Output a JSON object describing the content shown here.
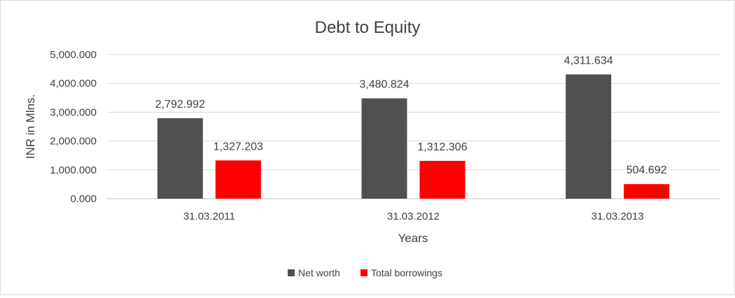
{
  "chart_data": {
    "type": "bar",
    "title": "Debt to Equity",
    "xlabel": "Years",
    "ylabel": "INR in Mlns.",
    "categories": [
      "31.03.2011",
      "31.03.2012",
      "31.03.2013"
    ],
    "ylim": [
      0,
      5000
    ],
    "yticks": [
      0,
      1000,
      2000,
      3000,
      4000,
      5000
    ],
    "ytick_labels": [
      "0.000",
      "1,000.000",
      "2,000.000",
      "3,000.000",
      "4,000.000",
      "5,000.000"
    ],
    "grid": true,
    "legend_position": "bottom",
    "series": [
      {
        "name": "Net worth",
        "color": "#505050",
        "values": [
          2792.992,
          3480.824,
          4311.634
        ],
        "labels": [
          "2,792.992",
          "3,480.824",
          "4,311.634"
        ]
      },
      {
        "name": "Total borrowings",
        "color": "#ff0000",
        "values": [
          1327.203,
          1312.306,
          504.692
        ],
        "labels": [
          "1,327.203",
          "1,312.306",
          "504.692"
        ]
      }
    ]
  }
}
